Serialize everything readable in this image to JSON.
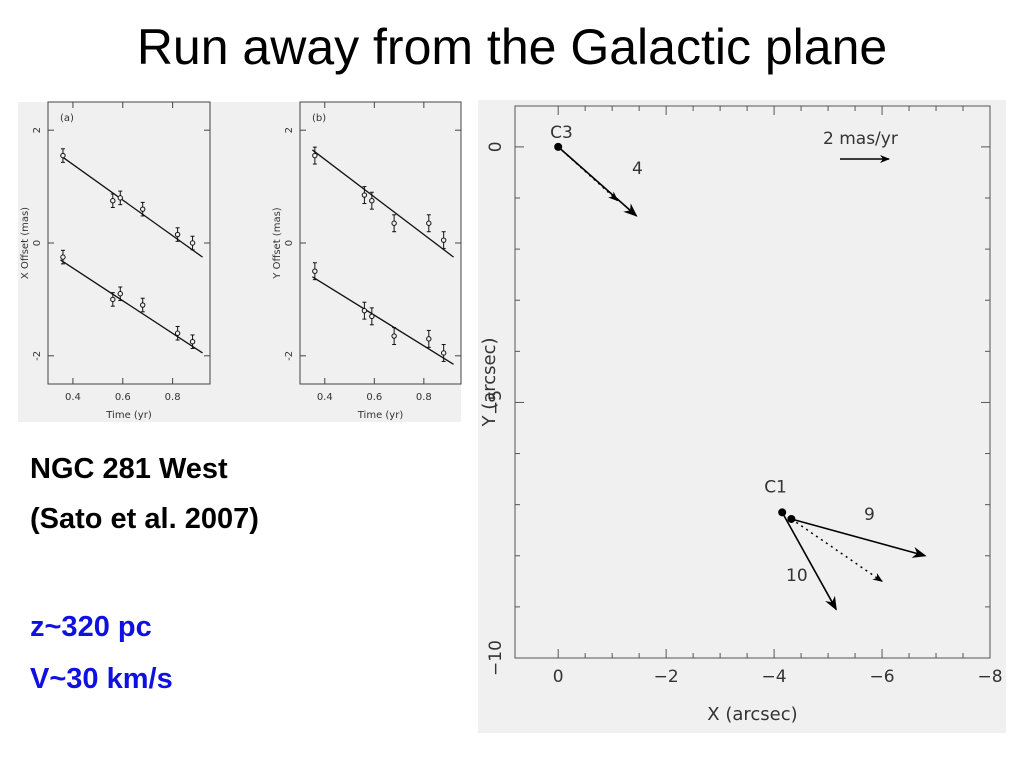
{
  "title": "Run away from the Galactic plane",
  "captions": {
    "object": "NGC 281 West",
    "reference": "(Sato et al. 2007)",
    "distance": "z~320 pc",
    "velocity": "V~30 km/s"
  },
  "accent_color": "#1010e0",
  "chart_data": [
    {
      "type": "scatter",
      "panel_label": "(a)",
      "xlabel": "Time (yr)",
      "ylabel": "X Offset (mas)",
      "xlim": [
        0.3,
        0.95
      ],
      "ylim": [
        -2.5,
        2.5
      ],
      "xticks": [
        0.4,
        0.6,
        0.8
      ],
      "yticks": [
        2,
        0,
        -2
      ],
      "series": [
        {
          "x": [
            0.36,
            0.56,
            0.59,
            0.68,
            0.82,
            0.88
          ],
          "y": [
            1.55,
            0.75,
            0.8,
            0.6,
            0.15,
            0.0
          ],
          "err": [
            0.12,
            0.12,
            0.12,
            0.12,
            0.12,
            0.12
          ],
          "fit": [
            [
              0.35,
              1.55
            ],
            [
              0.92,
              -0.25
            ]
          ]
        },
        {
          "x": [
            0.36,
            0.56,
            0.59,
            0.68,
            0.82,
            0.88
          ],
          "y": [
            -0.25,
            -1.0,
            -0.9,
            -1.1,
            -1.6,
            -1.75
          ],
          "err": [
            0.12,
            0.12,
            0.12,
            0.12,
            0.12,
            0.12
          ],
          "fit": [
            [
              0.35,
              -0.3
            ],
            [
              0.92,
              -1.95
            ]
          ]
        }
      ]
    },
    {
      "type": "scatter",
      "panel_label": "(b)",
      "xlabel": "Time (yr)",
      "ylabel": "Y Offset (mas)",
      "xlim": [
        0.3,
        0.95
      ],
      "ylim": [
        -2.5,
        2.5
      ],
      "xticks": [
        0.4,
        0.6,
        0.8
      ],
      "yticks": [
        2,
        0,
        -2
      ],
      "series": [
        {
          "x": [
            0.36,
            0.56,
            0.59,
            0.68,
            0.82,
            0.88
          ],
          "y": [
            1.55,
            0.85,
            0.75,
            0.35,
            0.35,
            0.05
          ],
          "err": [
            0.15,
            0.15,
            0.15,
            0.15,
            0.15,
            0.15
          ],
          "fit": [
            [
              0.35,
              1.65
            ],
            [
              0.92,
              -0.25
            ]
          ]
        },
        {
          "x": [
            0.36,
            0.56,
            0.59,
            0.68,
            0.82,
            0.88
          ],
          "y": [
            -0.5,
            -1.2,
            -1.3,
            -1.65,
            -1.7,
            -1.95
          ],
          "err": [
            0.15,
            0.15,
            0.15,
            0.15,
            0.15,
            0.15
          ],
          "fit": [
            [
              0.35,
              -0.6
            ],
            [
              0.92,
              -2.15
            ]
          ]
        }
      ]
    },
    {
      "type": "scatter",
      "xlabel": "X (arcsec)",
      "ylabel": "Y (arcsec)",
      "xlim": [
        0.8,
        -8
      ],
      "ylim": [
        -10,
        0.8
      ],
      "xticks": [
        0,
        -2,
        -4,
        -6,
        -8
      ],
      "xticklabels": [
        "0",
        "−2",
        "−4",
        "−6",
        "−8"
      ],
      "yticks": [
        0,
        -5,
        -10
      ],
      "yticklabels": [
        "0",
        "−5",
        "−10"
      ],
      "scale_label": "2 mas/yr",
      "sources": [
        {
          "name": "C3",
          "x": 0.0,
          "y": 0.0,
          "vectors": [
            {
              "label": "4",
              "to": [
                -1.45,
                -1.35
              ],
              "style": "solid"
            },
            {
              "to": [
                -1.1,
                -1.05
              ],
              "style": "dotted"
            }
          ]
        },
        {
          "name": "C1",
          "x": -4.15,
          "y": -7.15,
          "vectors": [
            {
              "label": "10",
              "to": [
                -5.15,
                -9.05
              ],
              "style": "solid"
            }
          ]
        },
        {
          "name": "",
          "x": -4.32,
          "y": -7.28,
          "vectors": [
            {
              "label": "9",
              "to": [
                -6.8,
                -8.0
              ],
              "style": "solid"
            },
            {
              "to": [
                -6.0,
                -8.5
              ],
              "style": "dotted"
            }
          ]
        }
      ]
    }
  ]
}
